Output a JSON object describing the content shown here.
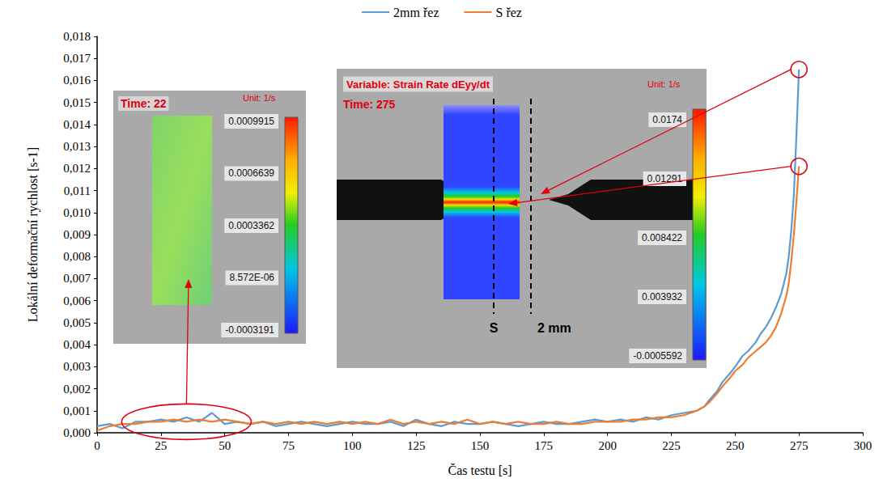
{
  "chart_data": {
    "type": "line",
    "x_label": "Čas testu [s]",
    "y_label": "Lokální deformační rychlost [s-1]",
    "x": [
      0,
      5,
      10,
      15,
      20,
      25,
      30,
      35,
      40,
      45,
      50,
      55,
      60,
      65,
      70,
      75,
      80,
      85,
      90,
      95,
      100,
      105,
      110,
      115,
      120,
      125,
      130,
      135,
      140,
      145,
      150,
      155,
      160,
      165,
      170,
      175,
      180,
      185,
      190,
      195,
      200,
      205,
      210,
      215,
      220,
      225,
      230,
      235,
      238,
      240,
      243,
      245,
      248,
      250,
      253,
      255,
      258,
      260,
      262,
      264,
      266,
      268,
      270,
      271,
      272,
      273,
      274,
      275
    ],
    "series": [
      {
        "name": "2mm řez",
        "color": "#5b9bd5",
        "line_style": "solid",
        "values": [
          0.0003,
          0.0004,
          0.0002,
          0.0005,
          0.0005,
          0.0006,
          0.0005,
          0.0007,
          0.0005,
          0.0009,
          0.0004,
          0.0005,
          0.0004,
          0.0005,
          0.0003,
          0.0004,
          0.0005,
          0.0004,
          0.0003,
          0.0004,
          0.0005,
          0.0004,
          0.0004,
          0.0005,
          0.0003,
          0.0006,
          0.0004,
          0.0003,
          0.0005,
          0.0004,
          0.0004,
          0.0005,
          0.0004,
          0.0003,
          0.0004,
          0.0005,
          0.0004,
          0.0004,
          0.0005,
          0.0006,
          0.0005,
          0.0006,
          0.0005,
          0.0007,
          0.0006,
          0.0008,
          0.0009,
          0.001,
          0.0012,
          0.0015,
          0.0019,
          0.0023,
          0.0027,
          0.003,
          0.0035,
          0.0037,
          0.0041,
          0.0045,
          0.0048,
          0.0052,
          0.0057,
          0.0063,
          0.0072,
          0.008,
          0.0092,
          0.0108,
          0.0135,
          0.0165
        ]
      },
      {
        "name": "S řez",
        "color": "#ed7d31",
        "line_style": "solid",
        "values": [
          0.0001,
          0.0003,
          0.0004,
          0.0004,
          0.0005,
          0.0005,
          0.0006,
          0.0005,
          0.0006,
          0.0005,
          0.0006,
          0.0005,
          0.0004,
          0.0005,
          0.0004,
          0.0005,
          0.0004,
          0.0005,
          0.0004,
          0.0005,
          0.0004,
          0.0005,
          0.0004,
          0.0006,
          0.0004,
          0.0005,
          0.0004,
          0.0005,
          0.0004,
          0.0006,
          0.0004,
          0.0005,
          0.0004,
          0.0005,
          0.0004,
          0.0004,
          0.0005,
          0.0004,
          0.0004,
          0.0005,
          0.0005,
          0.0005,
          0.0006,
          0.0006,
          0.0007,
          0.0007,
          0.0008,
          0.001,
          0.0012,
          0.0014,
          0.0018,
          0.0021,
          0.0025,
          0.0028,
          0.0031,
          0.0034,
          0.0037,
          0.0039,
          0.0041,
          0.0044,
          0.0048,
          0.0054,
          0.0062,
          0.0068,
          0.0078,
          0.009,
          0.0105,
          0.0121
        ]
      }
    ],
    "xlim": [
      0,
      300
    ],
    "xticks": [
      0,
      25,
      50,
      75,
      100,
      125,
      150,
      175,
      200,
      225,
      250,
      275,
      300
    ],
    "ylim": [
      0,
      0.018
    ],
    "yticks": [
      {
        "value": 0,
        "label": "0,000"
      },
      {
        "value": 0.001,
        "label": "0,001"
      },
      {
        "value": 0.002,
        "label": "0,002"
      },
      {
        "value": 0.003,
        "label": "0,003"
      },
      {
        "value": 0.004,
        "label": "0,004"
      },
      {
        "value": 0.005,
        "label": "0,005"
      },
      {
        "value": 0.006,
        "label": "0,006"
      },
      {
        "value": 0.007,
        "label": "0,007"
      },
      {
        "value": 0.008,
        "label": "0,008"
      },
      {
        "value": 0.009,
        "label": "0,009"
      },
      {
        "value": 0.01,
        "label": "0,010"
      },
      {
        "value": 0.011,
        "label": "0,011"
      },
      {
        "value": 0.012,
        "label": "0,012"
      },
      {
        "value": 0.013,
        "label": "0,013"
      },
      {
        "value": 0.014,
        "label": "0,014"
      },
      {
        "value": 0.015,
        "label": "0,015"
      },
      {
        "value": 0.016,
        "label": "0,016"
      },
      {
        "value": 0.017,
        "label": "0,017"
      },
      {
        "value": 0.018,
        "label": "0,018"
      }
    ],
    "grid": false,
    "legend": "top",
    "insets": [
      {
        "time": "Time: 22",
        "unit": "Unit: 1/s",
        "colorbar_ticks": [
          0.0009915,
          0.0006639,
          0.0003362,
          {
            "value": 8.572e-06,
            "label": "8.572E-06"
          },
          -0.0003191
        ]
      },
      {
        "variable": "Variable: Strain Rate dEyy/dt",
        "time": "Time: 275",
        "unit": "Unit: 1/s",
        "colorbar_ticks": [
          0.0174,
          0.01291,
          0.008422,
          0.003932,
          -0.0005592
        ],
        "sections": [
          "S",
          "2 mm"
        ]
      }
    ]
  }
}
